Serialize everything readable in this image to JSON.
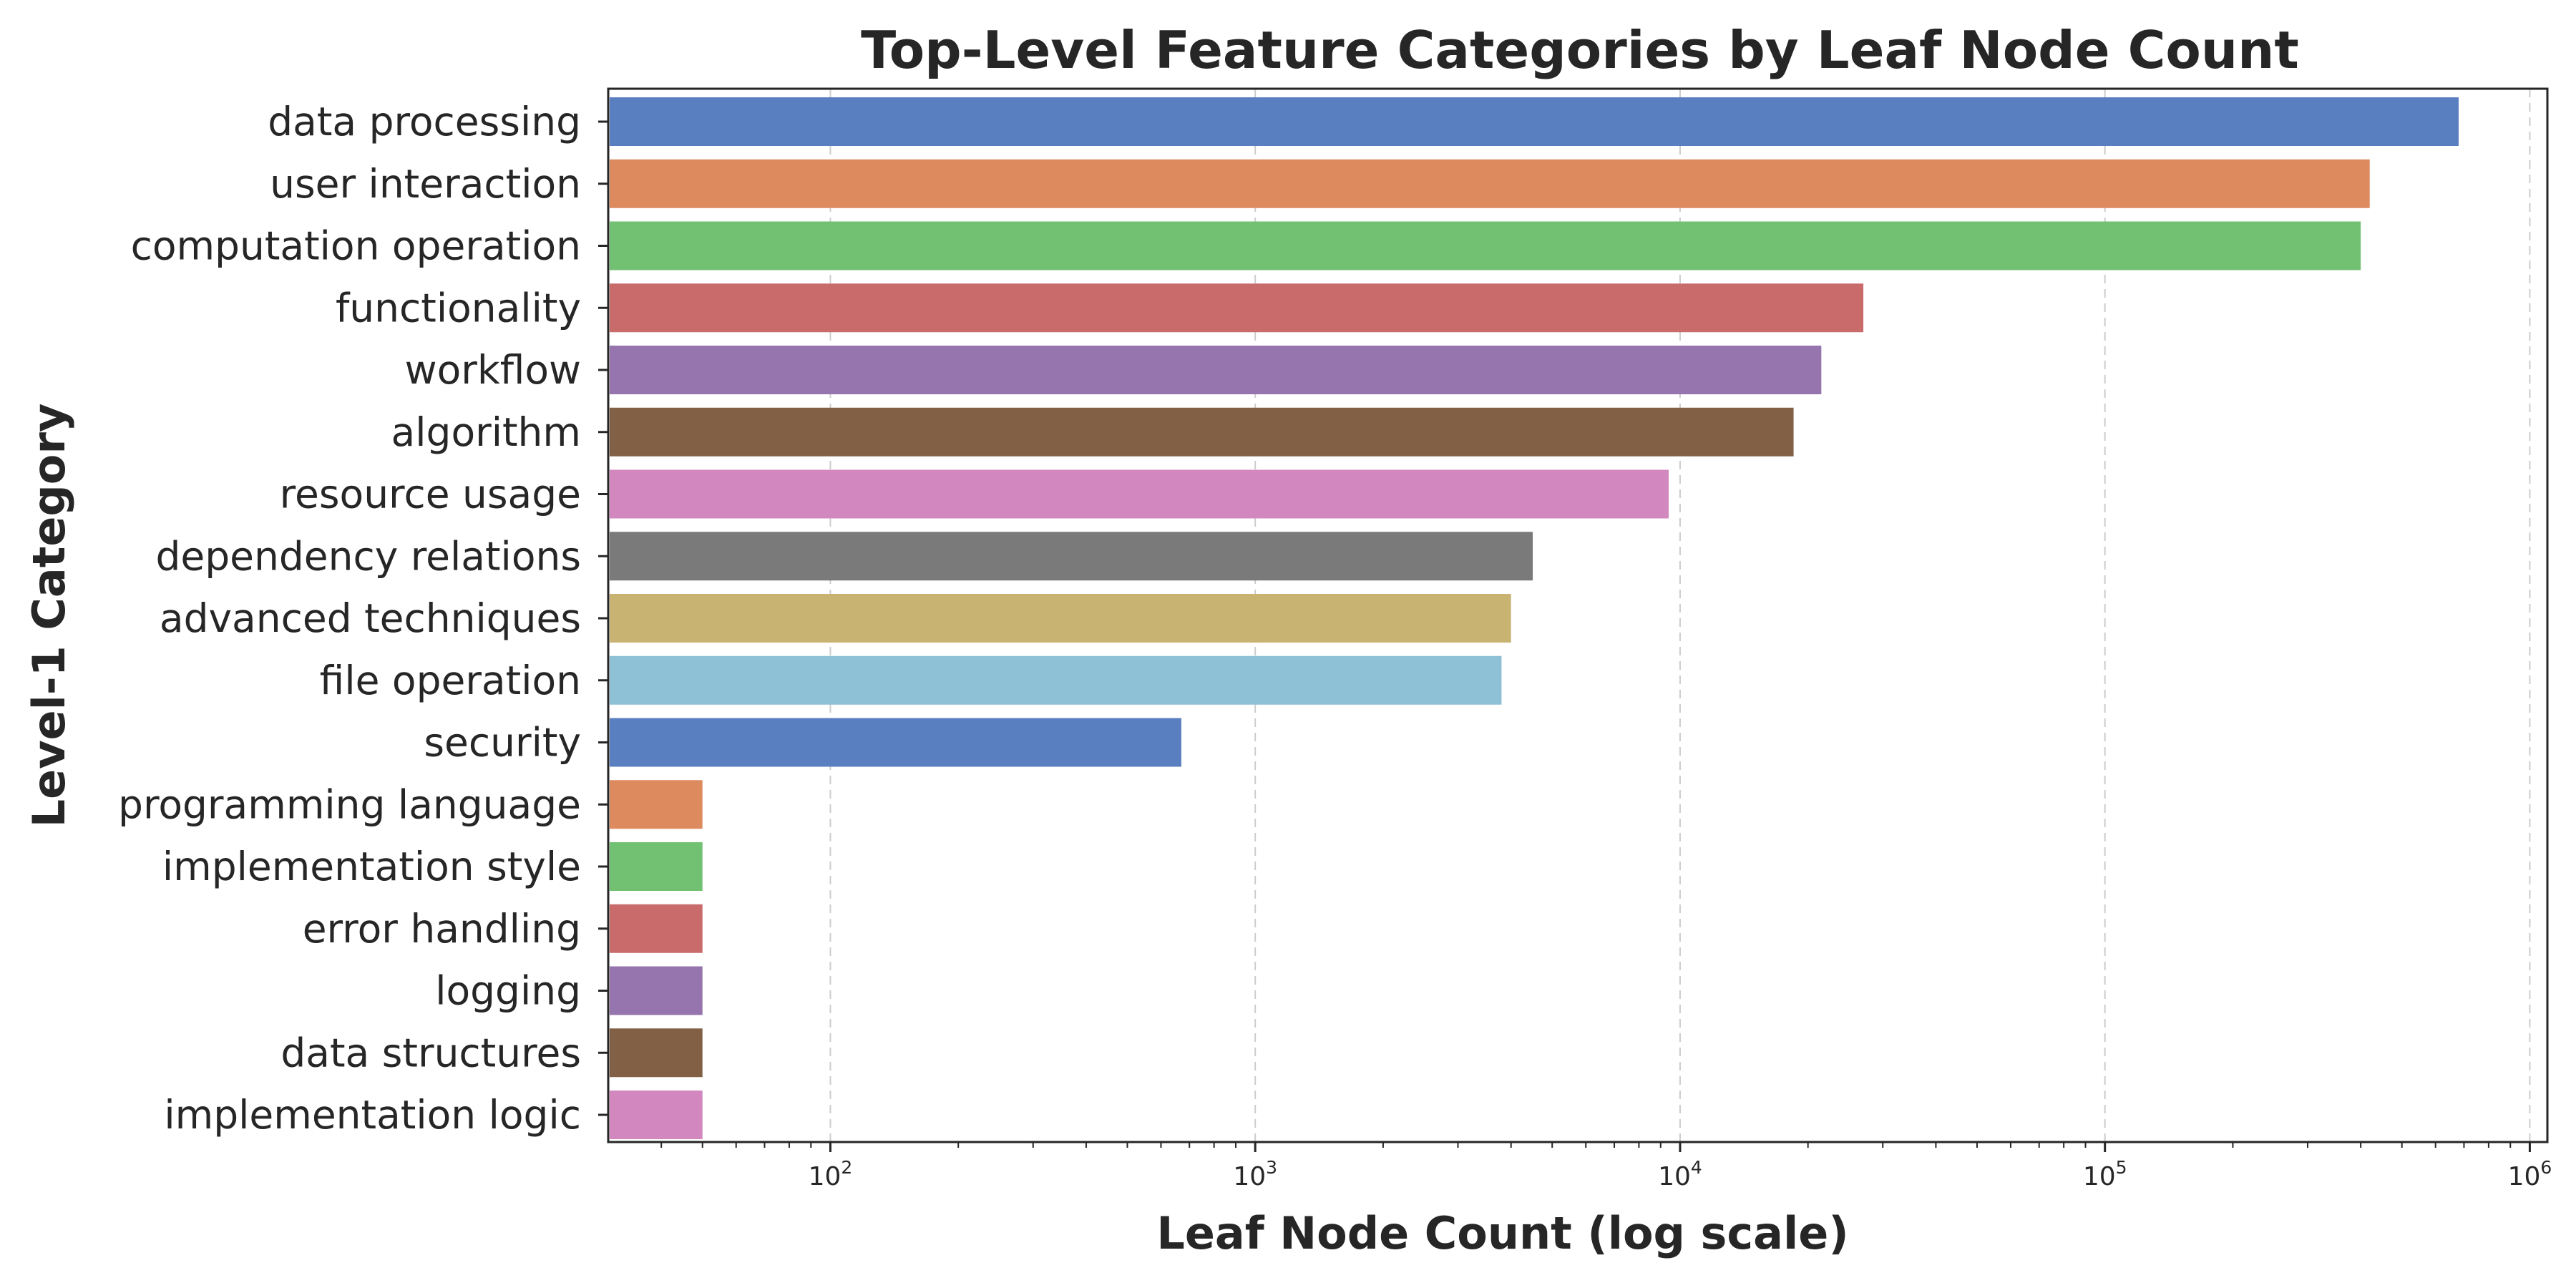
{
  "chart_data": {
    "type": "bar",
    "orientation": "horizontal",
    "title": "Top-Level Feature Categories by Leaf Node Count",
    "xlabel": "Leaf Node Count (log scale)",
    "ylabel": "Level-1 Category",
    "xscale": "log",
    "xlim": [
      30,
      1100000
    ],
    "xticks": [
      {
        "value": 100,
        "base": "10",
        "exp": "2"
      },
      {
        "value": 1000,
        "base": "10",
        "exp": "3"
      },
      {
        "value": 10000,
        "base": "10",
        "exp": "4"
      },
      {
        "value": 100000,
        "base": "10",
        "exp": "5"
      },
      {
        "value": 1000000,
        "base": "10",
        "exp": "6"
      }
    ],
    "grid": "x-major-dashed",
    "legend": "none",
    "categories": [
      "data processing",
      "user interaction",
      "computation operation",
      "functionality",
      "workflow",
      "algorithm",
      "resource usage",
      "dependency relations",
      "advanced techniques",
      "file operation",
      "security",
      "programming language",
      "implementation style",
      "error handling",
      "logging",
      "data structures",
      "implementation logic"
    ],
    "values": [
      680000,
      420000,
      400000,
      27000,
      21500,
      18500,
      9400,
      4500,
      4000,
      3800,
      670,
      50,
      50,
      50,
      50,
      50,
      50
    ],
    "colors": [
      "#5a7fc0",
      "#dd8a5f",
      "#72c173",
      "#c96b6b",
      "#9675ae",
      "#826046",
      "#d288bf",
      "#7a7a7a",
      "#c8b373",
      "#8fc1d6",
      "#5a7fc0",
      "#dd8a5f",
      "#72c173",
      "#c96b6b",
      "#9675ae",
      "#826046",
      "#d288bf"
    ]
  }
}
